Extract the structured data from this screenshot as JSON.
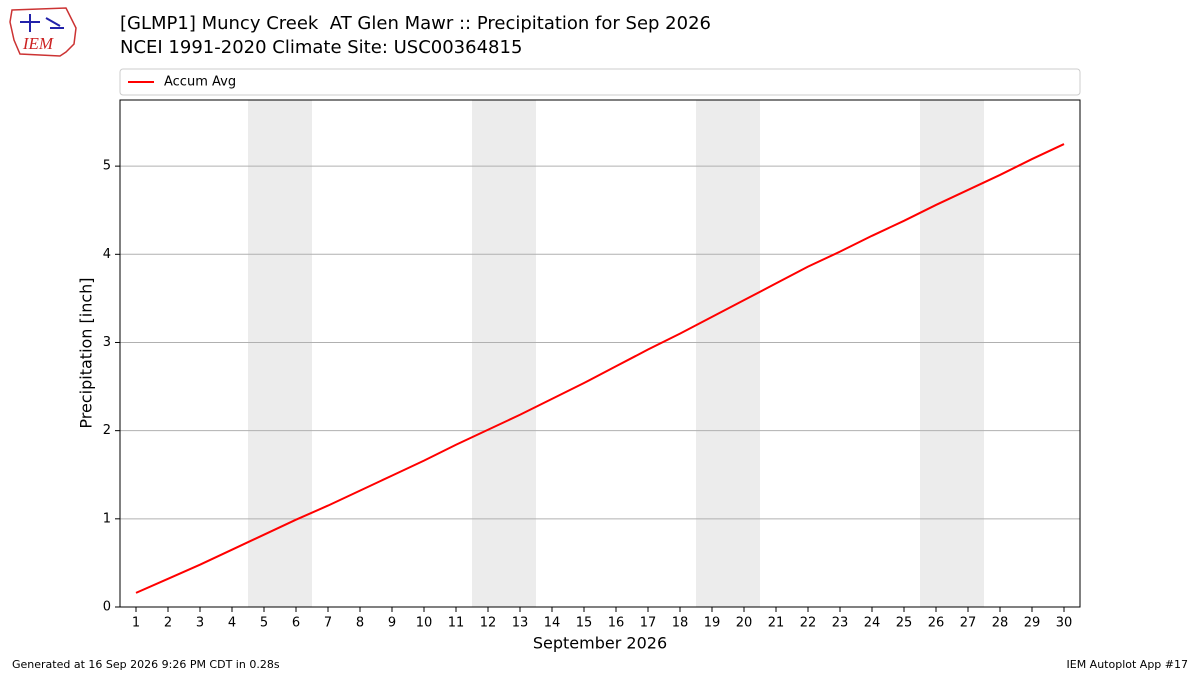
{
  "chart_data": {
    "type": "line",
    "title": "[GLMP1] Muncy Creek  AT Glen Mawr :: Precipitation for Sep 2026",
    "subtitle": "NCEI 1991-2020 Climate Site: USC00364815",
    "x_label": "September 2026",
    "y_label": "Precipitation [inch]",
    "x": [
      1,
      2,
      3,
      4,
      5,
      6,
      7,
      8,
      9,
      10,
      11,
      12,
      13,
      14,
      15,
      16,
      17,
      18,
      19,
      20,
      21,
      22,
      23,
      24,
      25,
      26,
      27,
      28,
      29,
      30
    ],
    "series": [
      {
        "name": "Accum Avg",
        "color": "#ff0000",
        "values": [
          0.16,
          0.32,
          0.48,
          0.65,
          0.82,
          0.99,
          1.15,
          1.32,
          1.49,
          1.66,
          1.84,
          2.01,
          2.18,
          2.36,
          2.54,
          2.73,
          2.92,
          3.1,
          3.29,
          3.48,
          3.67,
          3.86,
          4.03,
          4.21,
          4.38,
          4.56,
          4.73,
          4.9,
          5.08,
          5.25
        ]
      }
    ],
    "shaded_spans": [
      [
        4.5,
        6.5
      ],
      [
        11.5,
        13.5
      ],
      [
        18.5,
        20.5
      ],
      [
        25.5,
        27.5
      ]
    ],
    "shade_color": "#ececec",
    "xlim": [
      0.5,
      30.5
    ],
    "ylim": [
      0,
      5.75
    ],
    "xticks": [
      1,
      2,
      3,
      4,
      5,
      6,
      7,
      8,
      9,
      10,
      11,
      12,
      13,
      14,
      15,
      16,
      17,
      18,
      19,
      20,
      21,
      22,
      23,
      24,
      25,
      26,
      27,
      28,
      29,
      30
    ],
    "yticks": [
      0,
      1,
      2,
      3,
      4,
      5
    ],
    "grid": "y",
    "legend": "top"
  },
  "logo": "IEM",
  "footer": {
    "left": "Generated at 16 Sep 2026 9:26 PM CDT in 0.28s",
    "right": "IEM Autoplot App #17"
  }
}
